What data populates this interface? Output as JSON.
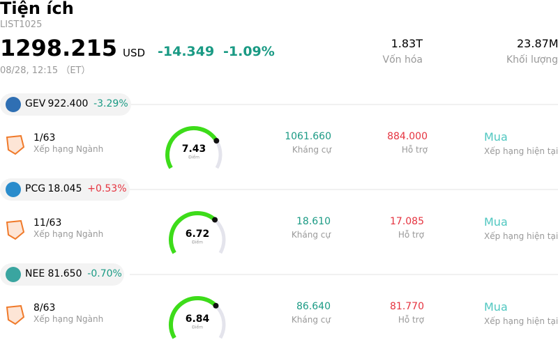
{
  "header": {
    "title": "Tiện ích",
    "symbol": "LIST1025",
    "price": "1298.215",
    "currency": "USD",
    "change": "-14.349",
    "change_pct": "-1.09%",
    "time": "08/28, 12:15 （ET）",
    "market_cap": {
      "value": "1.83T",
      "label": "Vốn hóa"
    },
    "volume": {
      "value": "23.87M",
      "label": "Khối lượng"
    }
  },
  "rows": [
    {
      "ticker": "GEV",
      "price": "922.400",
      "change_pct": "-3.29%",
      "rank": "1/63",
      "rank_label": "Xếp hạng Ngành",
      "score": 7.43,
      "score_label": "Điểm",
      "resistance": "1061.660",
      "resistance_label": "Kháng cự",
      "support": "884.000",
      "support_label": "Hỗ trợ",
      "rating": "Mua",
      "rating_label": "Xếp hạng hiện tại"
    },
    {
      "ticker": "PCG",
      "price": "18.045",
      "change_pct": "+0.53%",
      "rank": "11/63",
      "rank_label": "Xếp hạng Ngành",
      "score": 6.72,
      "score_label": "Điểm",
      "resistance": "18.610",
      "resistance_label": "Kháng cự",
      "support": "17.085",
      "support_label": "Hỗ trợ",
      "rating": "Mua",
      "rating_label": "Xếp hạng hiện tại"
    },
    {
      "ticker": "NEE",
      "price": "81.650",
      "change_pct": "-0.70%",
      "rank": "8/63",
      "rank_label": "Xếp hạng Ngành",
      "score": 6.84,
      "score_label": "Điểm",
      "resistance": "86.640",
      "resistance_label": "Kháng cự",
      "support": "81.770",
      "support_label": "Hỗ trợ",
      "rating": "Mua",
      "rating_label": "Xếp hạng hiện tại"
    }
  ]
}
